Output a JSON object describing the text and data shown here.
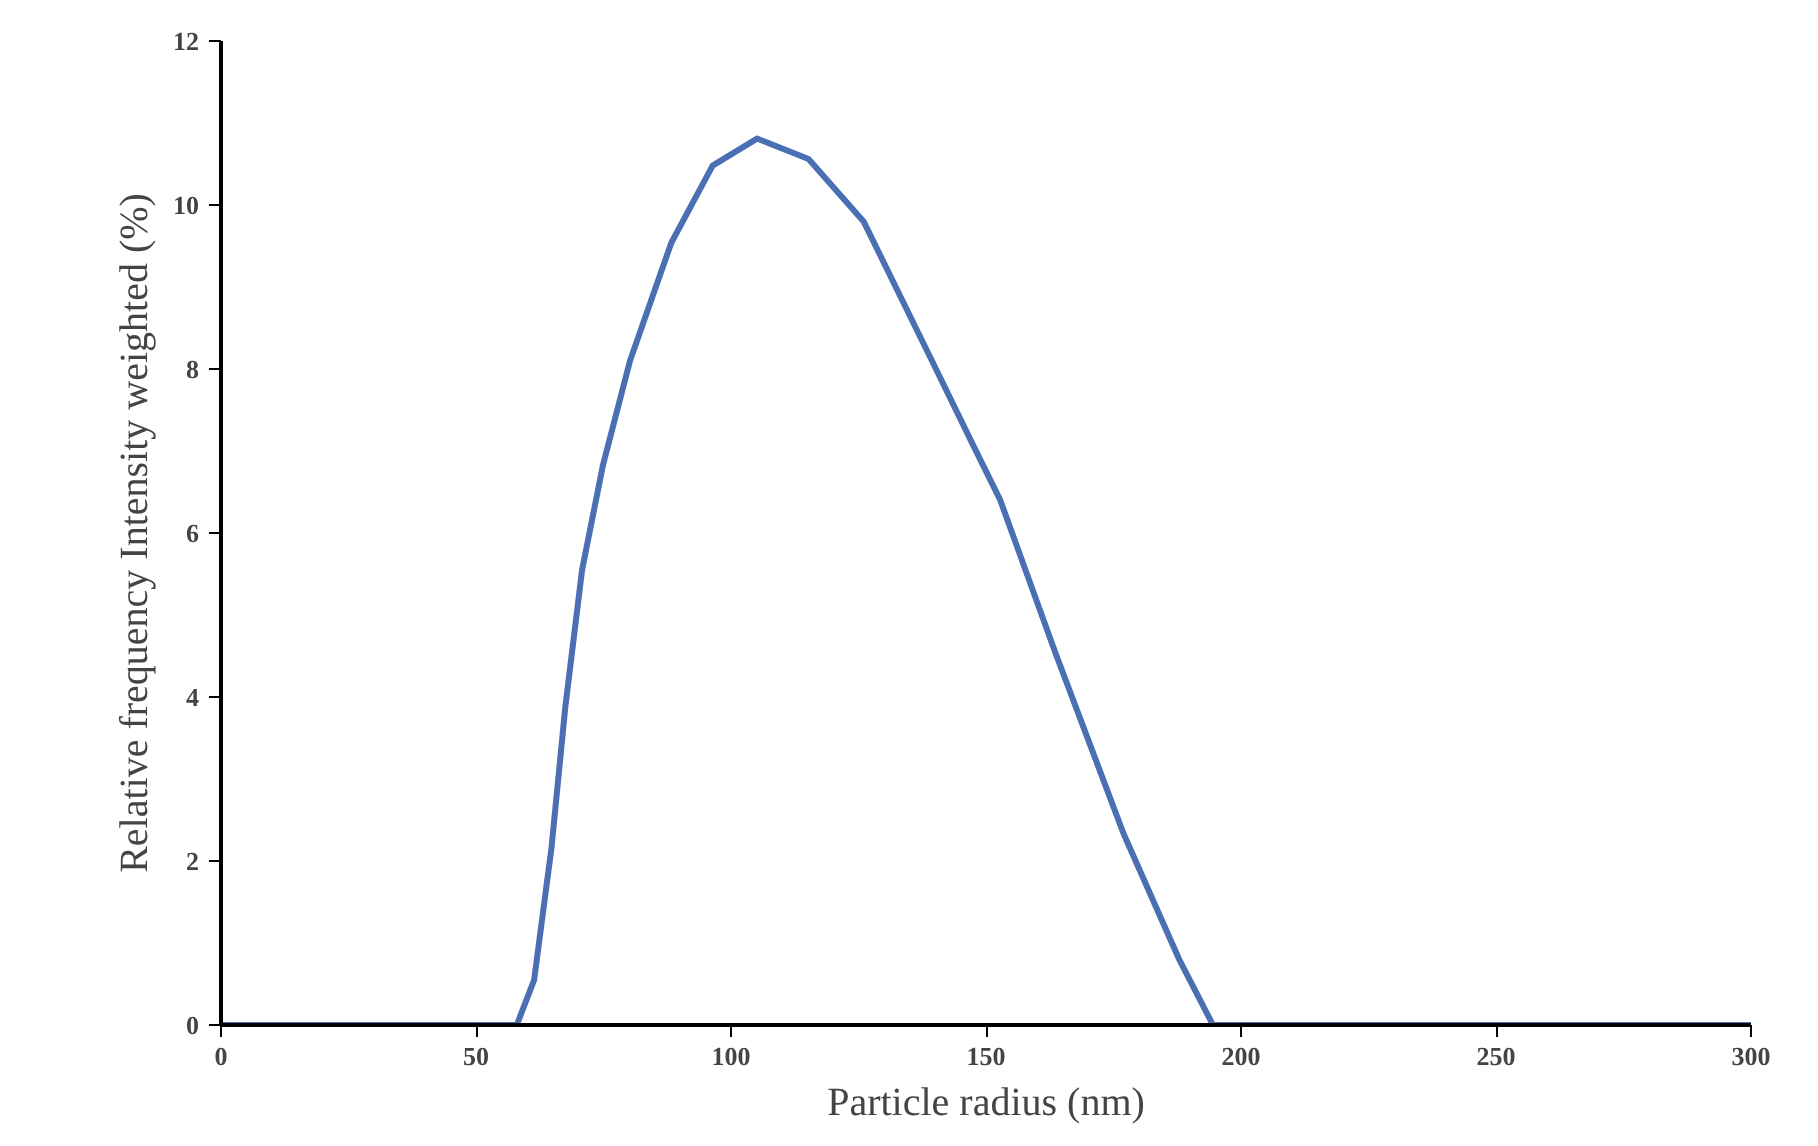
{
  "chart_data": {
    "type": "line",
    "xlabel": "Particle radius (nm)",
    "ylabel": "Relative frequency Intensity weighted (%)",
    "x": [
      0,
      58,
      61.4,
      64.8,
      67.5,
      70.8,
      74.9,
      80.2,
      88.3,
      96.4,
      105.1,
      115.2,
      126,
      139.4,
      147.4,
      152.8,
      163.6,
      177,
      187.8,
      194.5,
      300
    ],
    "series": [
      {
        "color": "#4a6fb3",
        "values": [
          0,
          0,
          0.55,
          2.16,
          3.87,
          5.55,
          6.83,
          8.1,
          9.54,
          10.48,
          10.81,
          10.56,
          9.8,
          8.1,
          7.08,
          6.4,
          4.54,
          2.33,
          0.81,
          0,
          0
        ]
      }
    ],
    "xlim": [
      0,
      300
    ],
    "xticks": [
      0,
      50,
      100,
      150,
      200,
      250,
      300
    ],
    "ylim": [
      0,
      12
    ],
    "yticks": [
      0,
      2,
      4,
      6,
      8,
      10,
      12
    ],
    "grid": false,
    "marker": "none",
    "line_style": "solid"
  }
}
